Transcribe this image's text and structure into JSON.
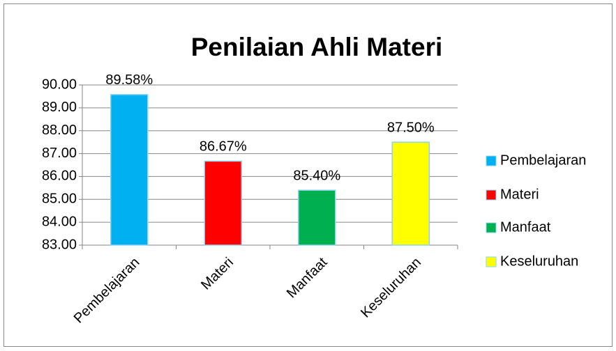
{
  "chart_data": {
    "type": "bar",
    "title": "Penilaian Ahli Materi",
    "categories": [
      "Pembelajaran",
      "Materi",
      "Manfaat",
      "Keseluruhan"
    ],
    "values": [
      89.58,
      86.67,
      85.4,
      87.5
    ],
    "value_labels": [
      "89.58%",
      "86.67%",
      "85.40%",
      "87.50%"
    ],
    "colors": [
      "#00b0f0",
      "#ff0000",
      "#00b050",
      "#ffff00"
    ],
    "ylim": [
      83,
      90
    ],
    "yticks": [
      {
        "value": 83,
        "label": "83.00"
      },
      {
        "value": 84,
        "label": "84.00"
      },
      {
        "value": 85,
        "label": "85.00"
      },
      {
        "value": 86,
        "label": "86.00"
      },
      {
        "value": 87,
        "label": "87.00"
      },
      {
        "value": 88,
        "label": "88.00"
      },
      {
        "value": 89,
        "label": "89.00"
      },
      {
        "value": 90,
        "label": "90.00"
      }
    ],
    "grid": true,
    "legend": "right"
  }
}
